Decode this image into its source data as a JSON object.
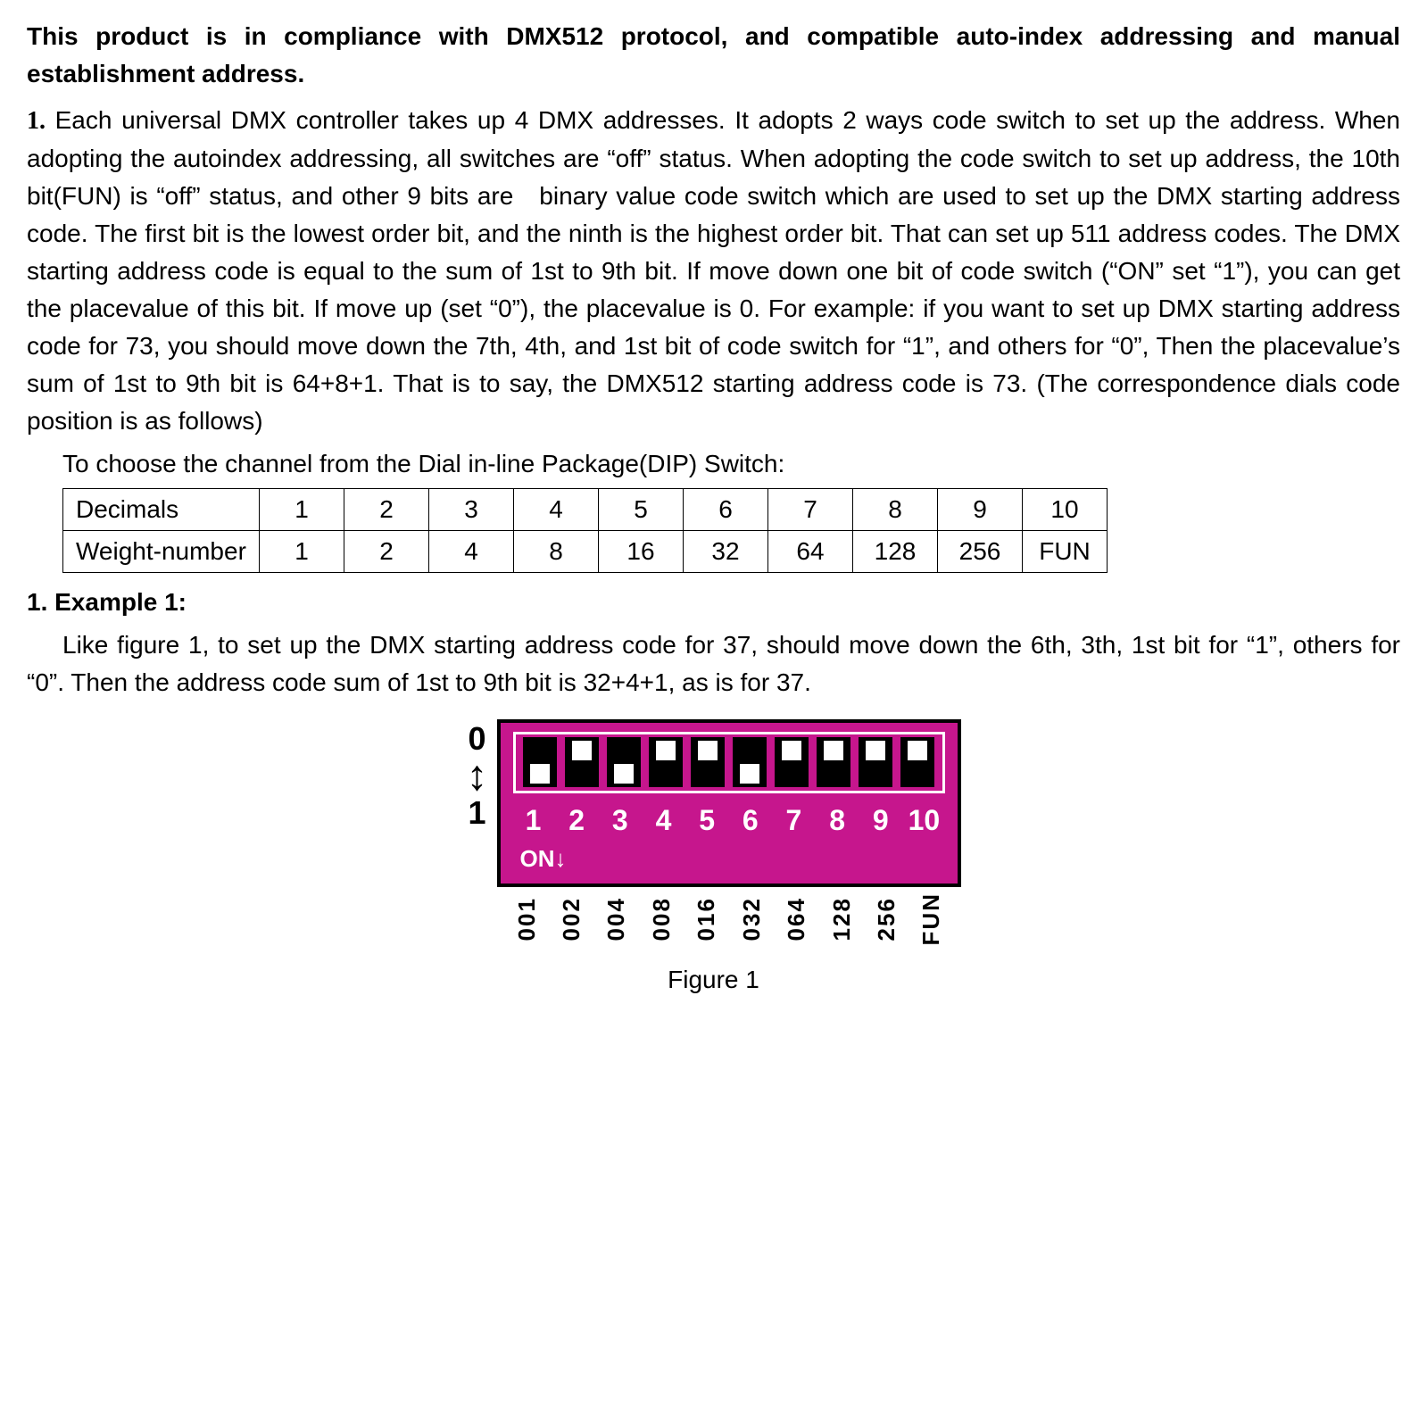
{
  "intro": "This product is in compliance with DMX512 protocol, and compatible auto-index addressing and manual establishment address.",
  "para1_num": "1.",
  "para1": " Each universal DMX controller takes up 4 DMX addresses. It adopts 2 ways code switch to set up the address. When adopting the autoindex addressing, all switches are “off” status. When adopting the code switch to set up address, the 10th bit(FUN) is “off” status, and other 9 bits are   binary value code switch which are used to set up the DMX starting address code. The first bit is the lowest order bit, and the ninth is the highest order bit. That can set up 511 address codes. The DMX starting address code is equal to the sum of 1st to 9th bit. If move down one bit of code switch (“ON” set “1”), you can get the placevalue of this bit. If move up (set “0”), the placevalue is 0. For example: if you want to set up DMX starting address code for 73, you should move down the 7th, 4th, and 1st bit of code switch for “1”, and others for “0”, Then the placevalue’s sum of 1st to 9th bit is 64+8+1. That is to say, the DMX512 starting address code is 73. (The correspondence dials code position is as follows)",
  "sub_line": "To choose the channel from the Dial in-line Package(DIP) Switch:",
  "table": {
    "row1_label": "Decimals",
    "row2_label": "Weight-number",
    "decimals": [
      "1",
      "2",
      "3",
      "4",
      "5",
      "6",
      "7",
      "8",
      "9",
      "10"
    ],
    "weights": [
      "1",
      "2",
      "4",
      "8",
      "16",
      "32",
      "64",
      "128",
      "256",
      "FUN"
    ]
  },
  "example": {
    "heading": "1. Example 1:",
    "body": "Like figure 1, to set up the DMX starting address code for 37, should move down the 6th, 3th, 1st bit for “1”, others for “0”. Then the address code sum of 1st to 9th bit is 32+4+1, as is for 37."
  },
  "dip": {
    "side_zero": "0",
    "side_one": "1",
    "positions": [
      "down",
      "up",
      "down",
      "up",
      "up",
      "down",
      "up",
      "up",
      "up",
      "up"
    ],
    "numbers": [
      "1",
      "2",
      "3",
      "4",
      "5",
      "6",
      "7",
      "8",
      "9",
      "10"
    ],
    "on_text": "ON↓",
    "weights_vert": [
      "001",
      "002",
      "004",
      "008",
      "016",
      "032",
      "064",
      "128",
      "256",
      "FUN"
    ],
    "bg_color": "#c6168d",
    "border_color": "#000000",
    "frame_color": "#ffffff"
  },
  "caption": "Figure 1"
}
